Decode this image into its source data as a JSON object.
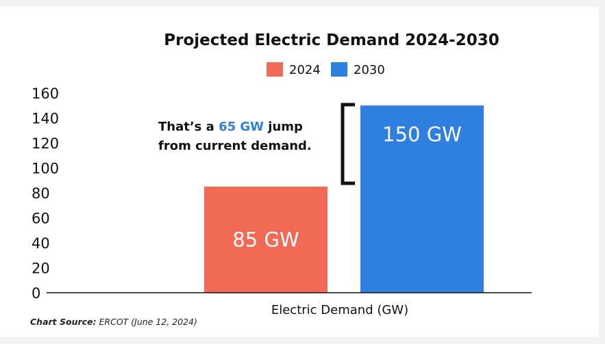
{
  "chart_data": {
    "type": "bar",
    "title": "Projected Electric Demand 2024-2030",
    "xlabel": "Electric Demand (GW)",
    "ylabel": "",
    "ylim": [
      0,
      160
    ],
    "yticks": [
      "0",
      "20",
      "40",
      "60",
      "80",
      "100",
      "120",
      "140",
      "160"
    ],
    "categories": [
      "Electric Demand (GW)"
    ],
    "series": [
      {
        "name": "2024",
        "values": [
          85
        ],
        "color": "#f26a55",
        "data_label": "85 GW"
      },
      {
        "name": "2030",
        "values": [
          150
        ],
        "color": "#2f7fe0",
        "data_label": "150 GW"
      }
    ],
    "legend_position": "top-center",
    "grid": false,
    "annotation": {
      "prefix": "That’s a ",
      "highlight": "65 GW",
      "suffix": " jump",
      "line2": "from current demand.",
      "highlight_color": "#2f7fe0"
    }
  },
  "source": {
    "label": "Chart Source:",
    "text": " ERCOT (June 12, 2024)"
  }
}
